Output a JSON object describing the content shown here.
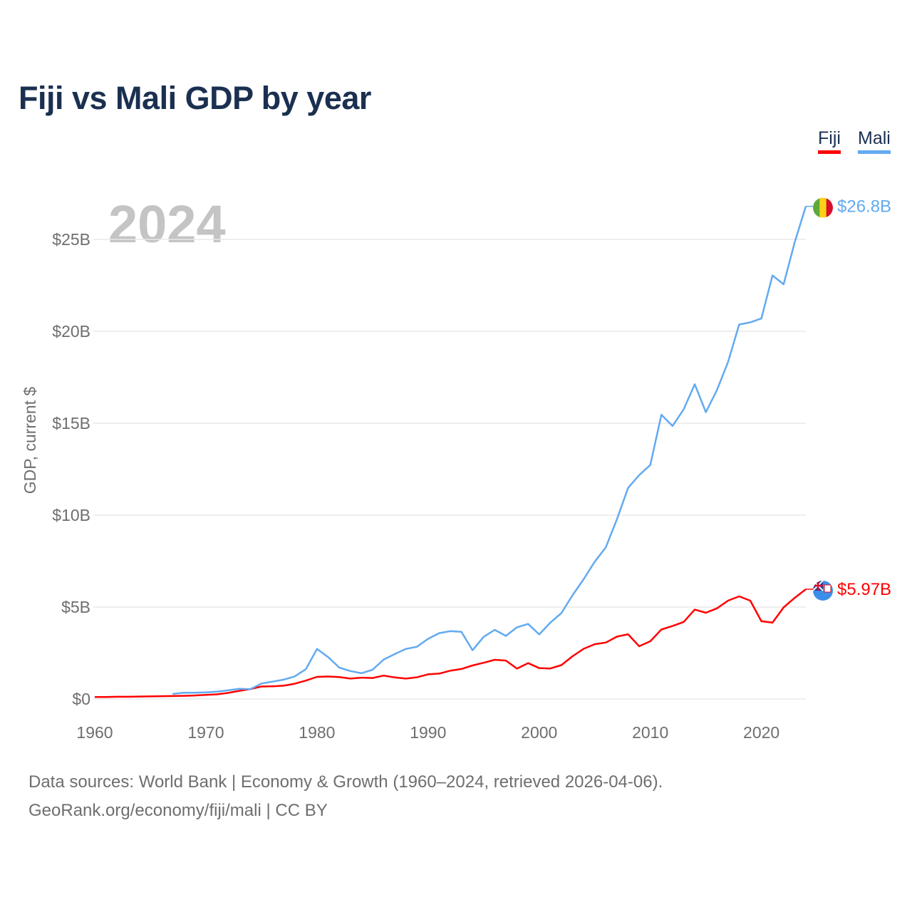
{
  "title": "Fiji vs Mali GDP by year",
  "legend": [
    {
      "label": "Fiji",
      "color": "#ff0000"
    },
    {
      "label": "Mali",
      "color": "#62aaf0"
    }
  ],
  "footer": {
    "line1": "Data sources: World Bank | Economy & Growth (1960–2024, retrieved 2026-04-06).",
    "line2": "GeoRank.org/economy/fiji/mali | CC BY"
  },
  "chart_data": {
    "type": "line",
    "title": "Fiji vs Mali GDP by year",
    "ylabel": "GDP, current $",
    "xlabel": "",
    "year_watermark": "2024",
    "xlim": [
      1960,
      2024
    ],
    "ylim": [
      0,
      26.8
    ],
    "x_ticks": [
      1960,
      1970,
      1980,
      1990,
      2000,
      2010,
      2020
    ],
    "y_ticks": [
      {
        "v": 0,
        "label": "$0"
      },
      {
        "v": 5,
        "label": "$5B"
      },
      {
        "v": 10,
        "label": "$10B"
      },
      {
        "v": 15,
        "label": "$15B"
      },
      {
        "v": 20,
        "label": "$20B"
      },
      {
        "v": 25,
        "label": "$25B"
      }
    ],
    "units": "billions USD",
    "grid": true,
    "legend_position": "top-right",
    "series": [
      {
        "name": "Fiji",
        "color": "#ff0000",
        "start_year": 1960,
        "end_label": "$5.97B",
        "flag": "fiji",
        "values": [
          0.11,
          0.11,
          0.12,
          0.12,
          0.13,
          0.14,
          0.15,
          0.16,
          0.17,
          0.19,
          0.22,
          0.25,
          0.33,
          0.44,
          0.54,
          0.68,
          0.69,
          0.72,
          0.83,
          1.0,
          1.2,
          1.22,
          1.19,
          1.11,
          1.16,
          1.14,
          1.27,
          1.17,
          1.11,
          1.18,
          1.34,
          1.38,
          1.54,
          1.63,
          1.82,
          1.97,
          2.13,
          2.09,
          1.65,
          1.95,
          1.68,
          1.66,
          1.84,
          2.32,
          2.73,
          2.98,
          3.07,
          3.39,
          3.52,
          2.87,
          3.14,
          3.78,
          3.97,
          4.19,
          4.86,
          4.69,
          4.93,
          5.35,
          5.58,
          5.35,
          4.23,
          4.15,
          4.98,
          5.5,
          5.97
        ]
      },
      {
        "name": "Mali",
        "color": "#62aaf0",
        "start_year": 1967,
        "end_label": "$26.8B",
        "flag": "mali",
        "values": [
          0.27,
          0.34,
          0.34,
          0.36,
          0.4,
          0.47,
          0.55,
          0.53,
          0.84,
          0.94,
          1.05,
          1.23,
          1.62,
          2.72,
          2.28,
          1.71,
          1.52,
          1.4,
          1.59,
          2.14,
          2.44,
          2.72,
          2.84,
          3.27,
          3.58,
          3.69,
          3.65,
          2.65,
          3.38,
          3.76,
          3.43,
          3.9,
          4.08,
          3.51,
          4.15,
          4.67,
          5.64,
          6.51,
          7.47,
          8.25,
          9.78,
          11.48,
          12.18,
          12.73,
          15.46,
          14.85,
          15.75,
          17.12,
          15.6,
          16.81,
          18.33,
          20.37,
          20.49,
          20.7,
          23.04,
          22.56,
          24.85,
          26.8
        ]
      }
    ]
  }
}
